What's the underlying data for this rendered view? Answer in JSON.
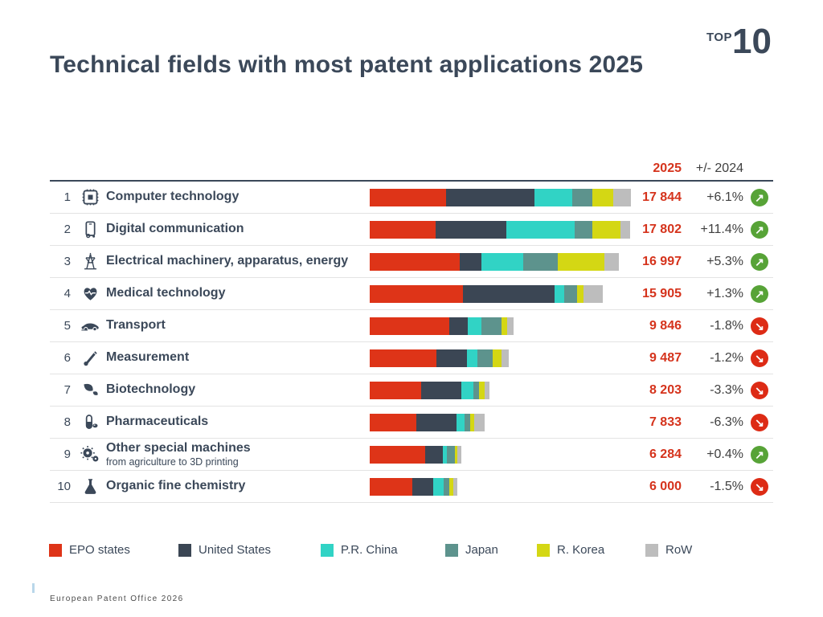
{
  "header": {
    "top_label": "TOP",
    "top_number": "10",
    "title": "Technical fields with most patent applications 2025"
  },
  "columns": {
    "year": "2025",
    "change": "+/- 2024"
  },
  "ui": {
    "up_arrow": "↗",
    "down_arrow": "↘"
  },
  "colors": {
    "title": "#3b4859",
    "value_red": "#d5331c",
    "trend_up_green": "#57a337",
    "trend_down_red": "#dd2b15",
    "rule_dark": "#3b4859",
    "rule_light": "#e3e3e3"
  },
  "table": {
    "rows": [
      {
        "rank": "1",
        "icon": "chip-icon",
        "label": "Computer technology",
        "sublabel": "",
        "value": "17 844",
        "value_num": 17844,
        "change": "+6.1%",
        "trend": "up",
        "segments_pct": [
          29.2,
          33.8,
          14.5,
          7.7,
          8.0,
          6.8
        ]
      },
      {
        "rank": "2",
        "icon": "smartphone-icon",
        "label": "Digital communication",
        "sublabel": "",
        "value": "17 802",
        "value_num": 17802,
        "change": "+11.4%",
        "trend": "up",
        "segments_pct": [
          25.4,
          26.9,
          26.3,
          6.8,
          10.8,
          3.8
        ]
      },
      {
        "rank": "3",
        "icon": "power-pylon-icon",
        "label": "Electrical machinery, apparatus, energy",
        "sublabel": "",
        "value": "16 997",
        "value_num": 16997,
        "change": "+5.3%",
        "trend": "up",
        "segments_pct": [
          36.1,
          8.9,
          16.7,
          13.8,
          18.7,
          5.8
        ]
      },
      {
        "rank": "4",
        "icon": "heart-pulse-icon",
        "label": "Medical technology",
        "sublabel": "",
        "value": "15 905",
        "value_num": 15905,
        "change": "+1.3%",
        "trend": "up",
        "segments_pct": [
          40.1,
          39.4,
          4.2,
          5.2,
          2.8,
          8.3
        ]
      },
      {
        "rank": "5",
        "icon": "car-icon",
        "label": "Transport",
        "sublabel": "",
        "value": "9 846",
        "value_num": 9846,
        "change": "-1.8%",
        "trend": "down",
        "segments_pct": [
          55.1,
          12.9,
          9.6,
          14.0,
          3.9,
          4.5
        ]
      },
      {
        "rank": "6",
        "icon": "thermometer-icon",
        "label": "Measurement",
        "sublabel": "",
        "value": "9 487",
        "value_num": 9487,
        "change": "-1.2%",
        "trend": "down",
        "segments_pct": [
          48.3,
          21.5,
          7.6,
          11.0,
          6.4,
          5.2
        ]
      },
      {
        "rank": "7",
        "icon": "leaf-icon",
        "label": "Biotechnology",
        "sublabel": "",
        "value": "8 203",
        "value_num": 8203,
        "change": "-3.3%",
        "trend": "down",
        "segments_pct": [
          42.6,
          33.8,
          10.1,
          4.7,
          4.7,
          4.1
        ]
      },
      {
        "rank": "8",
        "icon": "pill-icon",
        "label": "Pharmaceuticals",
        "sublabel": "",
        "value": "7 833",
        "value_num": 7833,
        "change": "-6.3%",
        "trend": "down",
        "segments_pct": [
          40.8,
          35.2,
          7.0,
          4.9,
          3.5,
          8.6
        ]
      },
      {
        "rank": "9",
        "icon": "gears-icon",
        "label": "Other special machines",
        "sublabel": "from agriculture to 3D printing",
        "value": "6 284",
        "value_num": 6284,
        "change": "+0.4%",
        "trend": "up",
        "segments_pct": [
          60.2,
          19.5,
          4.4,
          8.8,
          2.7,
          4.4
        ]
      },
      {
        "rank": "10",
        "icon": "flask-icon",
        "label": "Organic fine chemistry",
        "sublabel": "",
        "value": "6 000",
        "value_num": 6000,
        "change": "-1.5%",
        "trend": "down",
        "segments_pct": [
          48.6,
          23.4,
          12.1,
          6.5,
          4.7,
          4.7
        ]
      }
    ]
  },
  "legend": [
    {
      "label": "EPO states",
      "color": "#de3418"
    },
    {
      "label": "United States",
      "color": "#3b4654"
    },
    {
      "label": "P.R. China",
      "color": "#31d3c5"
    },
    {
      "label": "Japan",
      "color": "#5d938d"
    },
    {
      "label": "R. Korea",
      "color": "#d4d714"
    },
    {
      "label": "RoW",
      "color": "#bdbdbd"
    }
  ],
  "footer": "European Patent Office 2026",
  "chart_data": {
    "type": "bar",
    "orientation": "horizontal",
    "stacked": true,
    "title": "Technical fields with most patent applications 2025",
    "categories": [
      "Computer technology",
      "Digital communication",
      "Electrical machinery, apparatus, energy",
      "Medical technology",
      "Transport",
      "Measurement",
      "Biotechnology",
      "Pharmaceuticals",
      "Other special machines (from agriculture to 3D printing)",
      "Organic fine chemistry"
    ],
    "totals_2025": [
      17844,
      17802,
      16997,
      15905,
      9846,
      9487,
      8203,
      7833,
      6284,
      6000
    ],
    "change_vs_2024_pct": [
      6.1,
      11.4,
      5.3,
      1.3,
      -1.8,
      -1.2,
      -3.3,
      -6.3,
      0.4,
      -1.5
    ],
    "series": [
      {
        "name": "EPO states",
        "color": "#de3418",
        "values": [
          5210,
          4522,
          6136,
          6378,
          5425,
          4582,
          3494,
          3196,
          3783,
          2916
        ]
      },
      {
        "name": "United States",
        "color": "#3b4654",
        "values": [
          6031,
          4789,
          1513,
          6267,
          1270,
          2040,
          2773,
          2757,
          1225,
          1404
        ]
      },
      {
        "name": "P.R. China",
        "color": "#31d3c5",
        "values": [
          2587,
          4682,
          2838,
          668,
          945,
          721,
          828,
          548,
          277,
          726
        ]
      },
      {
        "name": "Japan",
        "color": "#5d938d",
        "values": [
          1374,
          1211,
          2346,
          827,
          1378,
          1044,
          386,
          384,
          553,
          390
        ]
      },
      {
        "name": "R. Korea",
        "color": "#d4d714",
        "values": [
          1428,
          1923,
          3178,
          445,
          384,
          607,
          386,
          274,
          170,
          282
        ]
      },
      {
        "name": "RoW",
        "color": "#bdbdbd",
        "values": [
          1214,
          675,
          986,
          1320,
          444,
          493,
          336,
          674,
          276,
          282
        ]
      }
    ],
    "series_values_estimated_from_bar_lengths": true,
    "xlabel": "",
    "ylabel": "",
    "legend_position": "bottom",
    "grid": false
  }
}
